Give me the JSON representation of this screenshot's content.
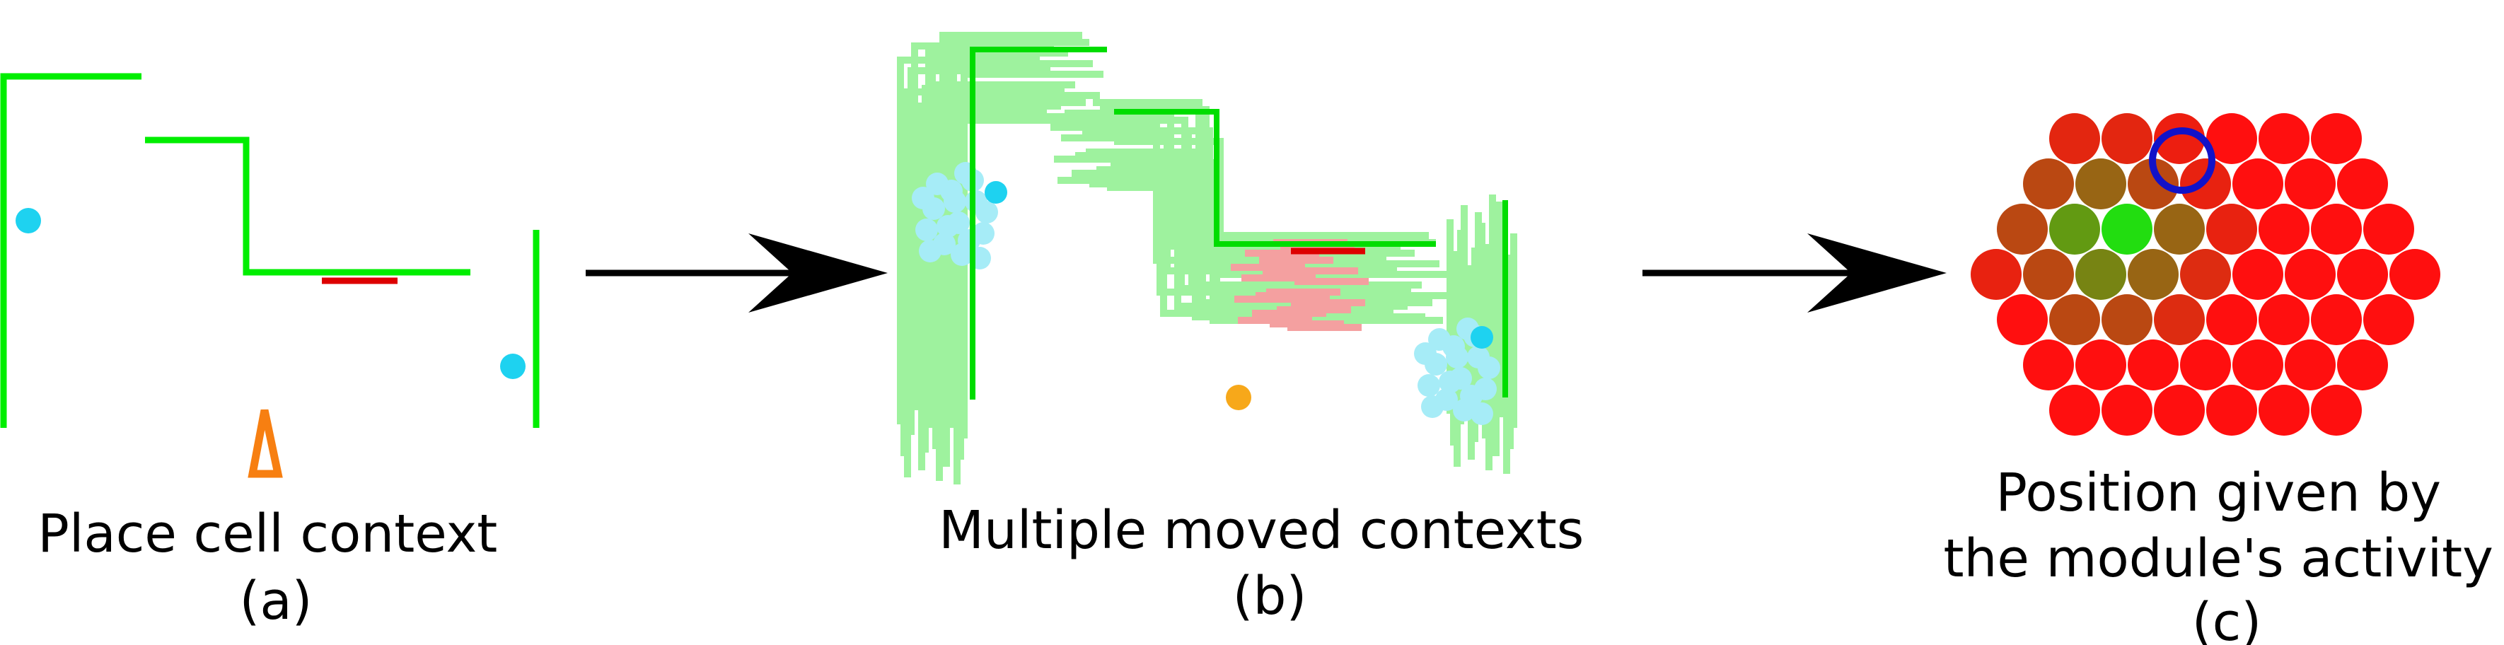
{
  "panels": [
    {
      "caption_lines": [
        "Place cell context",
        "(a)"
      ]
    },
    {
      "caption_lines": [
        "Multiple moved contexts",
        "(b)"
      ]
    },
    {
      "caption_lines": [
        "Position given by",
        "the module's activity",
        "(c)"
      ]
    }
  ],
  "colors": {
    "wall": "#00ee00",
    "faint_wall": "#8ef08e",
    "cue": "#dd0000",
    "faint_cue": "#f4a0a0",
    "landmark": "#1ed2f0",
    "faint_landmark": "#a6ecf7",
    "agent_marker": "#f77f11",
    "position_estimate": "#f7a81a",
    "arrow": "#000000",
    "active_cell": "#22dd10",
    "inactive_cell": "#ff0f0f",
    "estimate_ring": "#1212c8"
  },
  "module": {
    "row_sizes": [
      6,
      7,
      8,
      9,
      8,
      7,
      6
    ],
    "cell_activity": [
      [
        0.12,
        0.12,
        0.08,
        0.0,
        0.0,
        0.0
      ],
      [
        0.3,
        0.45,
        0.3,
        0.1,
        0.0,
        0.0,
        0.0
      ],
      [
        0.3,
        0.7,
        1.0,
        0.45,
        0.1,
        0.0,
        0.0,
        0.0
      ],
      [
        0.1,
        0.3,
        0.6,
        0.45,
        0.15,
        0.0,
        0.0,
        0.0,
        0.0
      ],
      [
        0.0,
        0.3,
        0.3,
        0.15,
        0.0,
        0.0,
        0.0,
        0.0
      ],
      [
        0.0,
        0.0,
        0.0,
        0.0,
        0.0,
        0.0,
        0.0
      ],
      [
        0.0,
        0.0,
        0.0,
        0.0,
        0.0,
        0.0
      ]
    ]
  }
}
